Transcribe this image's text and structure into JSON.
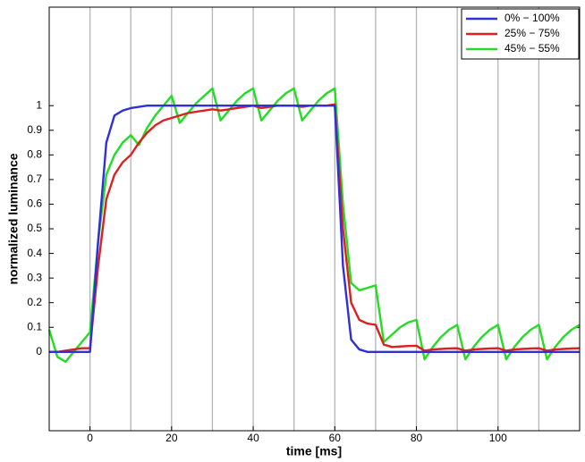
{
  "chart_data": {
    "type": "line",
    "x_label": "time [ms]",
    "y_label": "normalized luminance",
    "xlim": [
      -10,
      120
    ],
    "ylim": [
      -0.32,
      1.4
    ],
    "xticks": [
      0,
      20,
      40,
      60,
      80,
      100
    ],
    "yticks": [
      0,
      0.1,
      0.2,
      0.3,
      0.4,
      0.5,
      0.6,
      0.7,
      0.8,
      0.9,
      1
    ],
    "xgrid_lines": [
      0,
      10,
      20,
      30,
      40,
      50,
      60,
      70,
      80,
      90,
      100,
      110
    ],
    "legend": "upper-right",
    "x": [
      -10,
      -8,
      -6,
      -4,
      -2,
      0,
      2,
      4,
      6,
      8,
      10,
      12,
      14,
      16,
      18,
      20,
      22,
      24,
      26,
      28,
      30,
      32,
      34,
      36,
      38,
      40,
      42,
      44,
      46,
      48,
      50,
      52,
      54,
      56,
      58,
      60,
      62,
      64,
      66,
      68,
      70,
      72,
      74,
      76,
      78,
      80,
      82,
      84,
      86,
      88,
      90,
      92,
      94,
      96,
      98,
      100,
      102,
      104,
      106,
      108,
      110,
      112,
      114,
      116,
      118,
      120
    ],
    "series": [
      {
        "name": "0% − 100%",
        "color": "#3030d8",
        "values": [
          0,
          0,
          0,
          0,
          0,
          0,
          0.45,
          0.85,
          0.96,
          0.98,
          0.99,
          0.995,
          1,
          1,
          1,
          1,
          1,
          1,
          1,
          1,
          1,
          1,
          1,
          1,
          1,
          1,
          1,
          1,
          1,
          1,
          1,
          1,
          1,
          1,
          1,
          1,
          0.35,
          0.05,
          0.01,
          0,
          0,
          0,
          0,
          0,
          0,
          0,
          0,
          0,
          0,
          0,
          0,
          0,
          0,
          0,
          0,
          0,
          0,
          0,
          0,
          0,
          0,
          0,
          0,
          0,
          0,
          0
        ]
      },
      {
        "name": "25% − 75%",
        "color": "#dd2020",
        "values": [
          0,
          0,
          0.005,
          0.01,
          0.015,
          0.015,
          0.35,
          0.62,
          0.72,
          0.77,
          0.8,
          0.85,
          0.89,
          0.92,
          0.94,
          0.95,
          0.96,
          0.97,
          0.975,
          0.98,
          0.985,
          0.98,
          0.985,
          0.99,
          0.995,
          1,
          0.99,
          0.995,
          1,
          1,
          1,
          0.995,
          1,
          1,
          1,
          1.005,
          0.5,
          0.2,
          0.13,
          0.115,
          0.11,
          0.03,
          0.02,
          0.022,
          0.024,
          0.025,
          0.005,
          0.01,
          0.012,
          0.014,
          0.015,
          0.005,
          0.01,
          0.012,
          0.014,
          0.015,
          0.005,
          0.01,
          0.012,
          0.014,
          0.015,
          0.005,
          0.01,
          0.012,
          0.014,
          0.015
        ]
      },
      {
        "name": "45% − 55%",
        "color": "#22dd22",
        "values": [
          0.09,
          -0.02,
          -0.04,
          0,
          0.04,
          0.08,
          0.45,
          0.72,
          0.8,
          0.85,
          0.88,
          0.84,
          0.91,
          0.96,
          1,
          1.04,
          0.93,
          0.97,
          1.01,
          1.04,
          1.07,
          0.94,
          0.98,
          1.02,
          1.05,
          1.07,
          0.94,
          0.98,
          1.02,
          1.05,
          1.07,
          0.94,
          0.98,
          1.02,
          1.05,
          1.07,
          0.6,
          0.28,
          0.25,
          0.26,
          0.27,
          0.04,
          0.07,
          0.1,
          0.12,
          0.13,
          -0.03,
          0.02,
          0.06,
          0.09,
          0.11,
          -0.03,
          0.02,
          0.06,
          0.09,
          0.11,
          -0.03,
          0.02,
          0.06,
          0.09,
          0.11,
          -0.03,
          0.02,
          0.06,
          0.09,
          0.11
        ]
      }
    ]
  }
}
